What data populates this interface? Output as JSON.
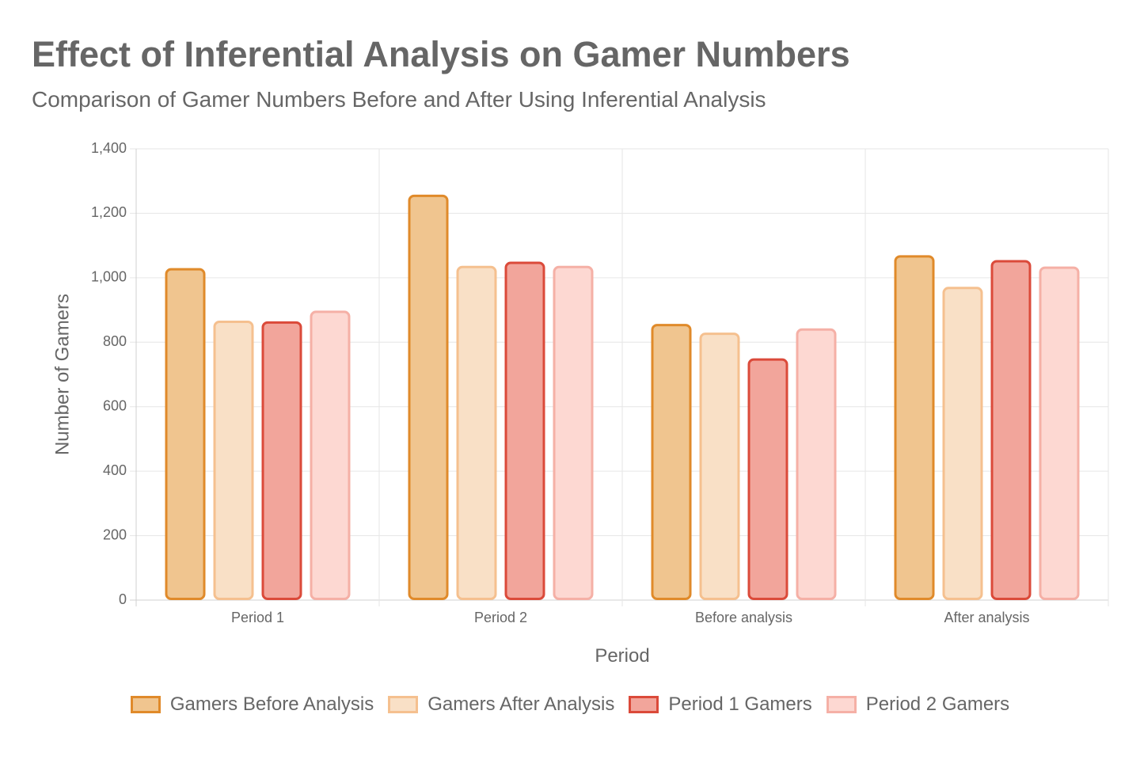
{
  "title": "Effect of Inferential Analysis on Gamer Numbers",
  "subtitle": "Comparison of Gamer Numbers Before and After Using Inferential Analysis",
  "chart_data": {
    "type": "bar",
    "title": "Effect of Inferential Analysis on Gamer Numbers",
    "subtitle": "Comparison of Gamer Numbers Before and After Using Inferential Analysis",
    "xlabel": "Period",
    "ylabel": "Number of Gamers",
    "ylim": [
      0,
      1400
    ],
    "yticks": [
      0,
      200,
      400,
      600,
      800,
      1000,
      1200,
      1400
    ],
    "ytick_labels": [
      "0",
      "200",
      "400",
      "600",
      "800",
      "1,000",
      "1,200",
      "1,400"
    ],
    "categories": [
      "Period 1",
      "Period 2",
      "Before analysis",
      "After analysis"
    ],
    "grid": true,
    "legend_position": "bottom",
    "series": [
      {
        "name": "Gamers Before Analysis",
        "values": [
          1030,
          1258,
          857,
          1070
        ],
        "fill": "#f0c58f",
        "stroke": "#e08a2a"
      },
      {
        "name": "Gamers After Analysis",
        "values": [
          867,
          1037,
          830,
          972
        ],
        "fill": "#f9e0c6",
        "stroke": "#f5c08f"
      },
      {
        "name": "Period 1 Gamers",
        "values": [
          865,
          1050,
          750,
          1055
        ],
        "fill": "#f2a59b",
        "stroke": "#db4a3a"
      },
      {
        "name": "Period 2 Gamers",
        "values": [
          898,
          1037,
          843,
          1035
        ],
        "fill": "#fdd8d2",
        "stroke": "#f5b0a6"
      }
    ]
  }
}
